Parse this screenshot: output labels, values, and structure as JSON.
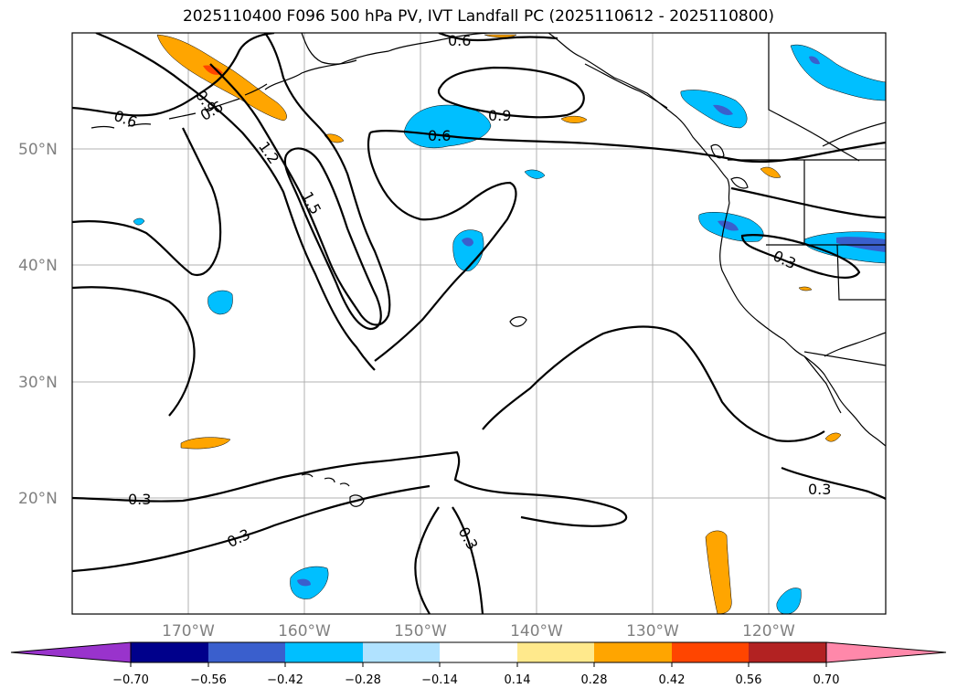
{
  "title": "2025110400 F096 500 hPa PV, IVT Landfall PC (2025110612 - 2025110800)",
  "map": {
    "lat_labels": [
      "50°N",
      "40°N",
      "30°N",
      "20°N"
    ],
    "lon_labels": [
      "170°W",
      "160°W",
      "150°W",
      "140°W",
      "130°W",
      "120°W"
    ],
    "pv_contour_labels": [
      "0.6",
      "0.9",
      "1.2",
      "1.5",
      "0.6",
      "0.6",
      "0.9",
      "0.6",
      "0.3",
      "0.3",
      "0.3",
      "0.3",
      "0.3"
    ]
  },
  "colorbar": {
    "ticks": [
      "−0.70",
      "−0.56",
      "−0.42",
      "−0.28",
      "−0.14",
      "0.14",
      "0.28",
      "0.42",
      "0.56",
      "0.70"
    ],
    "colors": [
      "#9933cc",
      "#00008b",
      "#3a5fcd",
      "#00bfff",
      "#b0e2ff",
      "#ffffff",
      "#ffe98c",
      "#ffa500",
      "#ff4500",
      "#b22222",
      "#ff88aa"
    ]
  }
}
